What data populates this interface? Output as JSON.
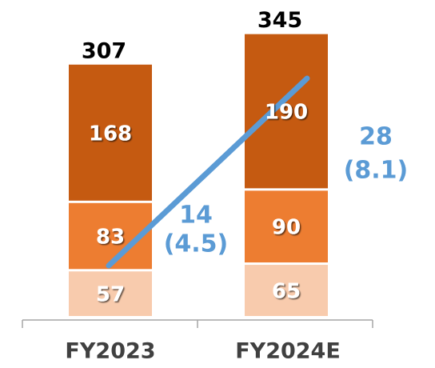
{
  "chart_data": {
    "type": "stacked-bar",
    "categories": [
      "FY2023",
      "FY2024E"
    ],
    "series": [
      {
        "color": "#f8cbad",
        "values": [
          57,
          65
        ]
      },
      {
        "color": "#ed7d31",
        "values": [
          83,
          90
        ]
      },
      {
        "color": "#c55a11",
        "values": [
          168,
          190
        ]
      }
    ],
    "totals": [
      307,
      345
    ],
    "annotations": [
      {
        "text": "14",
        "subtext": "(4.5)"
      },
      {
        "text": "28",
        "subtext": "(8.1)"
      }
    ]
  }
}
